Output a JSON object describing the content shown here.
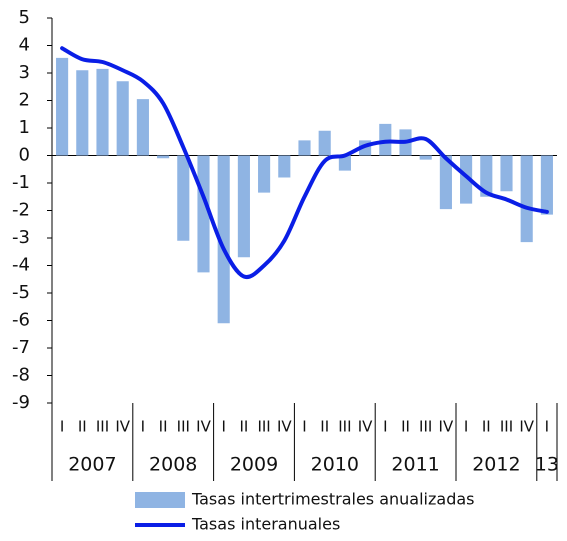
{
  "chart_data": {
    "type": "combo",
    "categories": [
      "I",
      "II",
      "III",
      "IV",
      "I",
      "II",
      "III",
      "IV",
      "I",
      "II",
      "III",
      "IV",
      "I",
      "II",
      "III",
      "IV",
      "I",
      "II",
      "III",
      "IV",
      "I",
      "II",
      "III",
      "IV",
      "I"
    ],
    "groups": [
      "2007",
      "2008",
      "2009",
      "2010",
      "2011",
      "2012",
      "13"
    ],
    "series": [
      {
        "name": "Tasas intertrimestrales anualizadas",
        "type": "bar",
        "color": "#8fb4e3",
        "values": [
          3.55,
          3.1,
          3.15,
          2.7,
          2.05,
          -0.1,
          -3.1,
          -4.25,
          -6.1,
          -3.7,
          -1.35,
          -0.8,
          0.55,
          0.9,
          -0.55,
          0.55,
          1.15,
          0.95,
          -0.15,
          -1.95,
          -1.75,
          -1.5,
          -1.3,
          -3.15,
          -2.15
        ]
      },
      {
        "name": "Tasas interanuales",
        "type": "line",
        "color": "#0a1ee6",
        "values": [
          3.9,
          3.5,
          3.4,
          3.1,
          2.7,
          1.9,
          0.3,
          -1.5,
          -3.4,
          -4.4,
          -4.0,
          -3.1,
          -1.5,
          -0.2,
          0.0,
          0.35,
          0.5,
          0.5,
          0.6,
          -0.1,
          -0.75,
          -1.35,
          -1.6,
          -1.9,
          -2.05
        ]
      }
    ],
    "ylim": [
      -9,
      5
    ],
    "yticks": [
      5,
      4,
      3,
      2,
      1,
      0,
      -1,
      -2,
      -3,
      -4,
      -5,
      -6,
      -7,
      -8,
      -9
    ]
  }
}
